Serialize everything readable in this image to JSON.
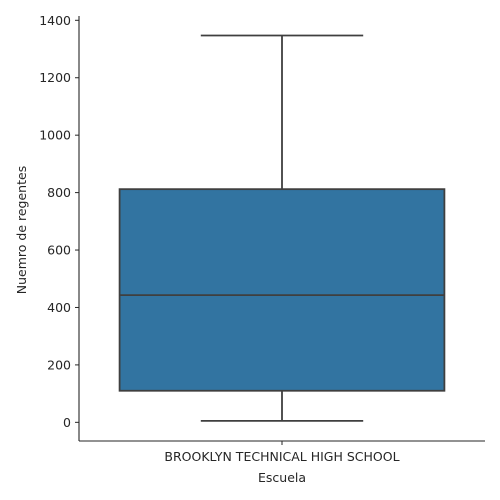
{
  "chart_data": {
    "type": "box",
    "title": "",
    "xlabel": "Escuela",
    "ylabel": "Nuemro de regentes",
    "categories": [
      "BROOKLYN TECHNICAL HIGH SCHOOL"
    ],
    "boxes": [
      {
        "category": "BROOKLYN TECHNICAL HIGH SCHOOL",
        "whisker_low": 5,
        "q1": 110,
        "median": 443,
        "q3": 812,
        "whisker_high": 1347
      }
    ],
    "y_ticks": [
      0,
      200,
      400,
      600,
      800,
      1000,
      1200,
      1400
    ],
    "ylim": [
      -65,
      1415
    ],
    "grid": false,
    "box_color": "#3274a1",
    "line_color": "#3f3f3f",
    "axis_color": "#262626"
  }
}
